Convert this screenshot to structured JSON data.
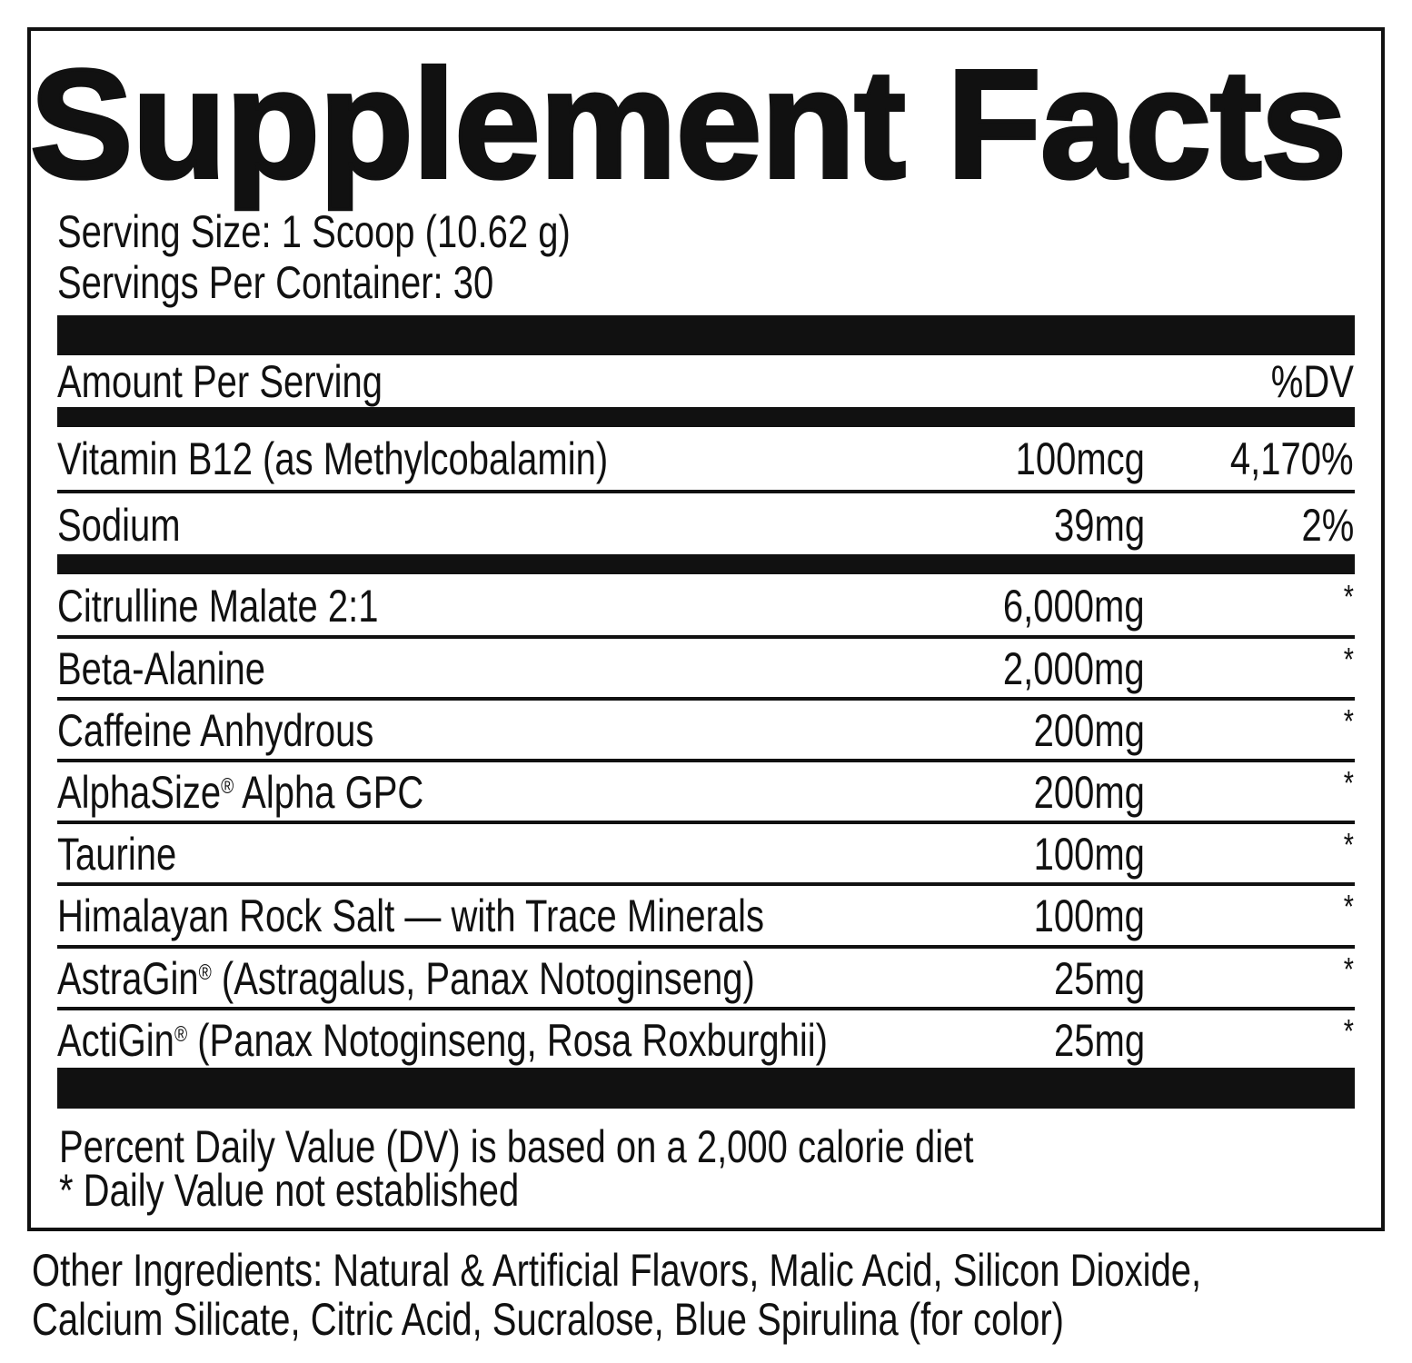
{
  "title": "Supplement Facts",
  "serving_size": "Serving Size: 1 Scoop (10.62 g)",
  "servings_per_container": "Servings Per Container: 30",
  "header": {
    "left": "Amount Per Serving",
    "right": "%DV"
  },
  "rows": [
    {
      "name": "Vitamin B12 (as Methylcobalamin)",
      "reg": "",
      "rest": "",
      "amount": "100mcg",
      "dv": "4,170%"
    },
    {
      "name": "Sodium",
      "reg": "",
      "rest": "",
      "amount": "39mg",
      "dv": "2%"
    },
    {
      "name": "Citrulline Malate 2:1",
      "reg": "",
      "rest": "",
      "amount": "6,000mg",
      "dv": "*"
    },
    {
      "name": "Beta-Alanine",
      "reg": "",
      "rest": "",
      "amount": "2,000mg",
      "dv": "*"
    },
    {
      "name": "Caffeine Anhydrous",
      "reg": "",
      "rest": "",
      "amount": "200mg",
      "dv": "*"
    },
    {
      "name": "AlphaSize",
      "reg": "®",
      "rest": " Alpha GPC",
      "amount": "200mg",
      "dv": "*"
    },
    {
      "name": "Taurine",
      "reg": "",
      "rest": "",
      "amount": "100mg",
      "dv": "*"
    },
    {
      "name": "Himalayan Rock Salt — with Trace Minerals",
      "reg": "",
      "rest": "",
      "amount": "100mg",
      "dv": "*"
    },
    {
      "name": "AstraGin",
      "reg": "®",
      "rest": " (Astragalus, Panax Notoginseng)",
      "amount": "25mg",
      "dv": "*"
    },
    {
      "name": "ActiGin",
      "reg": "®",
      "rest": " (Panax Notoginseng, Rosa Roxburghii)",
      "amount": "25mg",
      "dv": "*"
    }
  ],
  "footnotes": [
    "Percent Daily Value (DV) is based on a 2,000 calorie diet",
    "* Daily Value not established"
  ],
  "other_ingredients": [
    "Other Ingredients: Natural & Artificial Flavors, Malic Acid, Silicon Dioxide,",
    "Calcium Silicate, Citric Acid, Sucralose, Blue Spirulina (for color)"
  ]
}
